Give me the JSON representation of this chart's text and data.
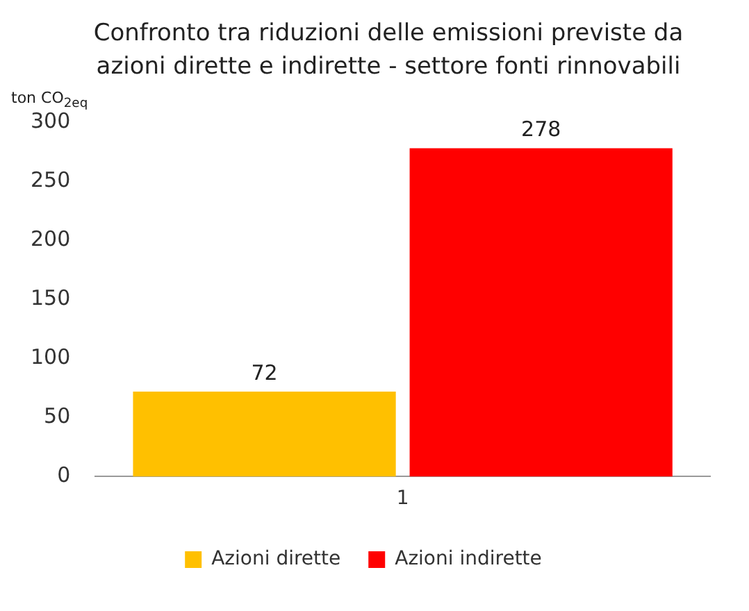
{
  "chart_data": {
    "type": "bar",
    "title": "Confronto tra riduzioni delle emissioni previste da azioni dirette e indirette - settore fonti rinnovabili",
    "ylabel": "ton CO$_{2eq}$",
    "categories": [
      "1"
    ],
    "series": [
      {
        "name": "Azioni dirette",
        "color": "#ffc000",
        "values": [
          72
        ]
      },
      {
        "name": "Azioni indirette",
        "color": "#ff0000",
        "values": [
          278
        ]
      }
    ],
    "ylim": [
      0,
      300
    ],
    "yticks": [
      0,
      50,
      100,
      150,
      200,
      250,
      300
    ],
    "grid": false,
    "legend": "bottom",
    "data_labels": true
  }
}
